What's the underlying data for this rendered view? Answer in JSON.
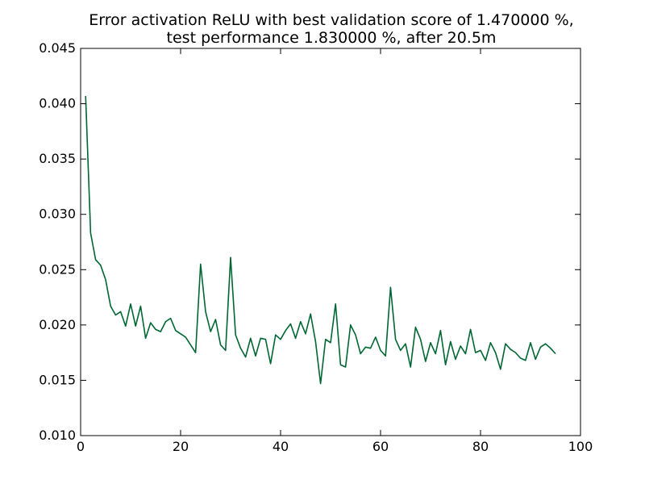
{
  "chart_data": {
    "type": "line",
    "title_line_1": "Error activation ReLU with best validation score of 1.470000 %,",
    "title_line_2": "test performance 1.830000 %, after 20.5m",
    "xlabel": "",
    "ylabel": "",
    "xlim": [
      0,
      100
    ],
    "ylim": [
      0.01,
      0.045
    ],
    "x_ticks": [
      {
        "value": 0,
        "label": "0"
      },
      {
        "value": 20,
        "label": "20"
      },
      {
        "value": 40,
        "label": "40"
      },
      {
        "value": 60,
        "label": "60"
      },
      {
        "value": 80,
        "label": "80"
      },
      {
        "value": 100,
        "label": "100"
      }
    ],
    "y_ticks": [
      {
        "value": 0.01,
        "label": "0.010"
      },
      {
        "value": 0.015,
        "label": "0.015"
      },
      {
        "value": 0.02,
        "label": "0.020"
      },
      {
        "value": 0.025,
        "label": "0.025"
      },
      {
        "value": 0.03,
        "label": "0.030"
      },
      {
        "value": 0.035,
        "label": "0.035"
      },
      {
        "value": 0.04,
        "label": "0.040"
      },
      {
        "value": 0.045,
        "label": "0.045"
      }
    ],
    "grid": false,
    "legend": "none",
    "series": [
      {
        "color": "#006633",
        "x": [
          1,
          2,
          3,
          4,
          5,
          6,
          7,
          8,
          9,
          10,
          11,
          12,
          13,
          14,
          15,
          16,
          17,
          18,
          19,
          20,
          21,
          22,
          23,
          24,
          25,
          26,
          27,
          28,
          29,
          30,
          31,
          32,
          33,
          34,
          35,
          36,
          37,
          38,
          39,
          40,
          41,
          42,
          43,
          44,
          45,
          46,
          47,
          48,
          49,
          50,
          51,
          52,
          53,
          54,
          55,
          56,
          57,
          58,
          59,
          60,
          61,
          62,
          63,
          64,
          65,
          66,
          67,
          68,
          69,
          70,
          71,
          72,
          73,
          74,
          75,
          76,
          77,
          78,
          79,
          80,
          81,
          82,
          83,
          84,
          85,
          86,
          87,
          88,
          89,
          90,
          91,
          92,
          93,
          94,
          95
        ],
        "values": [
          0.0407,
          0.0283,
          0.0259,
          0.0254,
          0.0241,
          0.0217,
          0.0209,
          0.0212,
          0.0199,
          0.0219,
          0.0199,
          0.0217,
          0.0188,
          0.0202,
          0.0196,
          0.0194,
          0.0203,
          0.0206,
          0.0195,
          0.0192,
          0.0189,
          0.0182,
          0.0175,
          0.0255,
          0.0212,
          0.0194,
          0.0205,
          0.0182,
          0.0177,
          0.0261,
          0.0191,
          0.0179,
          0.0171,
          0.0188,
          0.0172,
          0.0188,
          0.0187,
          0.0165,
          0.0191,
          0.0187,
          0.0195,
          0.0201,
          0.0188,
          0.0203,
          0.0192,
          0.021,
          0.0185,
          0.0147,
          0.0187,
          0.0184,
          0.0219,
          0.0164,
          0.0162,
          0.02,
          0.0191,
          0.0174,
          0.018,
          0.0179,
          0.0189,
          0.0177,
          0.0172,
          0.0234,
          0.0187,
          0.0177,
          0.0183,
          0.0162,
          0.0198,
          0.0187,
          0.0167,
          0.0184,
          0.0174,
          0.0195,
          0.0164,
          0.0185,
          0.0169,
          0.0181,
          0.0174,
          0.0196,
          0.0175,
          0.0177,
          0.0168,
          0.0184,
          0.0175,
          0.016,
          0.0183,
          0.0178,
          0.0175,
          0.017,
          0.0168,
          0.0184,
          0.0169,
          0.018,
          0.0183,
          0.0179,
          0.0174
        ]
      }
    ]
  }
}
